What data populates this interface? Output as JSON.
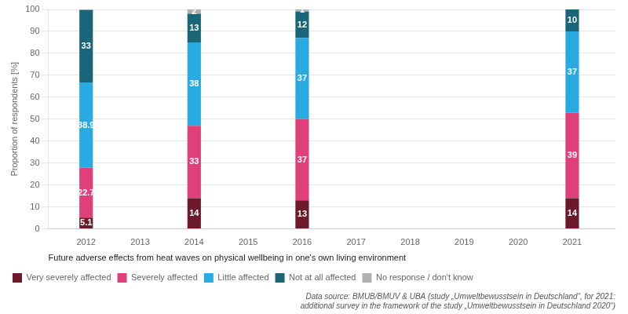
{
  "chart_data": {
    "type": "bar",
    "stacked": true,
    "x": [
      2012,
      2014,
      2016,
      2021
    ],
    "xlim": [
      2011.3,
      2021.8
    ],
    "xticks": [
      2012,
      2013,
      2014,
      2015,
      2016,
      2017,
      2018,
      2019,
      2020,
      2021
    ],
    "ylim": [
      0,
      100
    ],
    "yticks": [
      0,
      10,
      20,
      30,
      40,
      50,
      60,
      70,
      80,
      90,
      100
    ],
    "grid": true,
    "legend": "bottom",
    "data_labels": true,
    "xlabel": "Future adverse effects from heat waves on physical wellbeing in one's own living environment",
    "ylabel": "Proportion of respondents [%]",
    "annotations": [
      "Data source: BMUB/BMUV & UBA (study „Umweltbewusstsein in Deutschland“, for 2021:\nadditional survey in the framework of the study „Umweltbewusstsein in Deutschland 2020“)"
    ],
    "series": [
      {
        "name": "Very severely affected",
        "color": "#6b1a2b",
        "values": [
          5.1,
          14,
          13,
          14
        ]
      },
      {
        "name": "Severely affected",
        "color": "#e0407a",
        "values": [
          22.7,
          33,
          37,
          39
        ]
      },
      {
        "name": "Little affected",
        "color": "#29abe2",
        "values": [
          38.9,
          38,
          37,
          37
        ]
      },
      {
        "name": "Not at all affected",
        "color": "#1a6678",
        "values": [
          33,
          13,
          12,
          10
        ]
      },
      {
        "name": "No response / don't know",
        "color": "#b0b0b0",
        "values": [
          0.3,
          2,
          1,
          0
        ],
        "value_labels": [
          null,
          "2",
          "1",
          null
        ]
      }
    ]
  }
}
